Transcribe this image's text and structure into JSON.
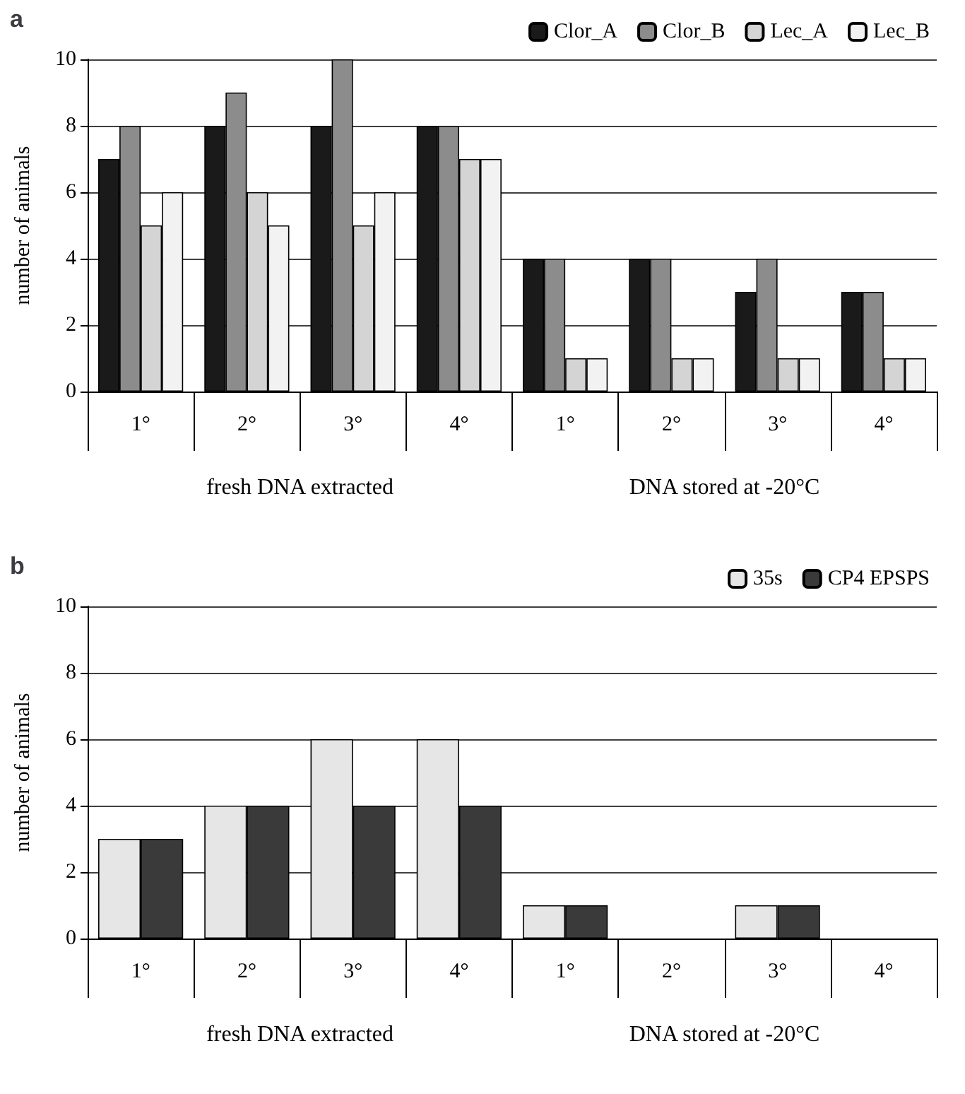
{
  "chart_data": [
    {
      "type": "bar",
      "title": "a",
      "ylabel": "number of animals",
      "categories": [
        "1°",
        "2°",
        "3°",
        "4°",
        "1°",
        "2°",
        "3°",
        "4°"
      ],
      "series": [
        {
          "name": "Clor_A",
          "color": "#1a1a1a",
          "values": [
            7,
            8,
            8,
            8,
            4,
            4,
            3,
            3
          ]
        },
        {
          "name": "Clor_B",
          "color": "#8c8c8c",
          "values": [
            8,
            9,
            10,
            8,
            4,
            4,
            4,
            3
          ]
        },
        {
          "name": "Lec_A",
          "color": "#d4d4d4",
          "values": [
            5,
            6,
            5,
            7,
            1,
            1,
            1,
            1
          ]
        },
        {
          "name": "Lec_B",
          "color": "#f2f2f2",
          "values": [
            6,
            5,
            6,
            7,
            1,
            1,
            1,
            1
          ]
        }
      ],
      "ylim": [
        0,
        10
      ],
      "yticks": [
        0,
        2,
        4,
        6,
        8,
        10
      ],
      "grid": "y",
      "legend": "top right",
      "annotations": [
        "fresh DNA extracted",
        "DNA stored at -20°C"
      ]
    },
    {
      "type": "bar",
      "title": "b",
      "ylabel": "number of animals",
      "categories": [
        "1°",
        "2°",
        "3°",
        "4°",
        "1°",
        "2°",
        "3°",
        "4°"
      ],
      "series": [
        {
          "name": "35s",
          "color": "#e6e6e6",
          "values": [
            3,
            4,
            6,
            6,
            1,
            0,
            1,
            0
          ]
        },
        {
          "name": "CP4 EPSPS",
          "color": "#3a3a3a",
          "values": [
            3,
            4,
            4,
            4,
            1,
            0,
            1,
            0
          ]
        }
      ],
      "ylim": [
        0,
        10
      ],
      "yticks": [
        0,
        2,
        4,
        6,
        8,
        10
      ],
      "grid": "y",
      "legend": "top right",
      "annotations": [
        "fresh DNA extracted",
        "DNA stored at -20°C"
      ]
    }
  ]
}
